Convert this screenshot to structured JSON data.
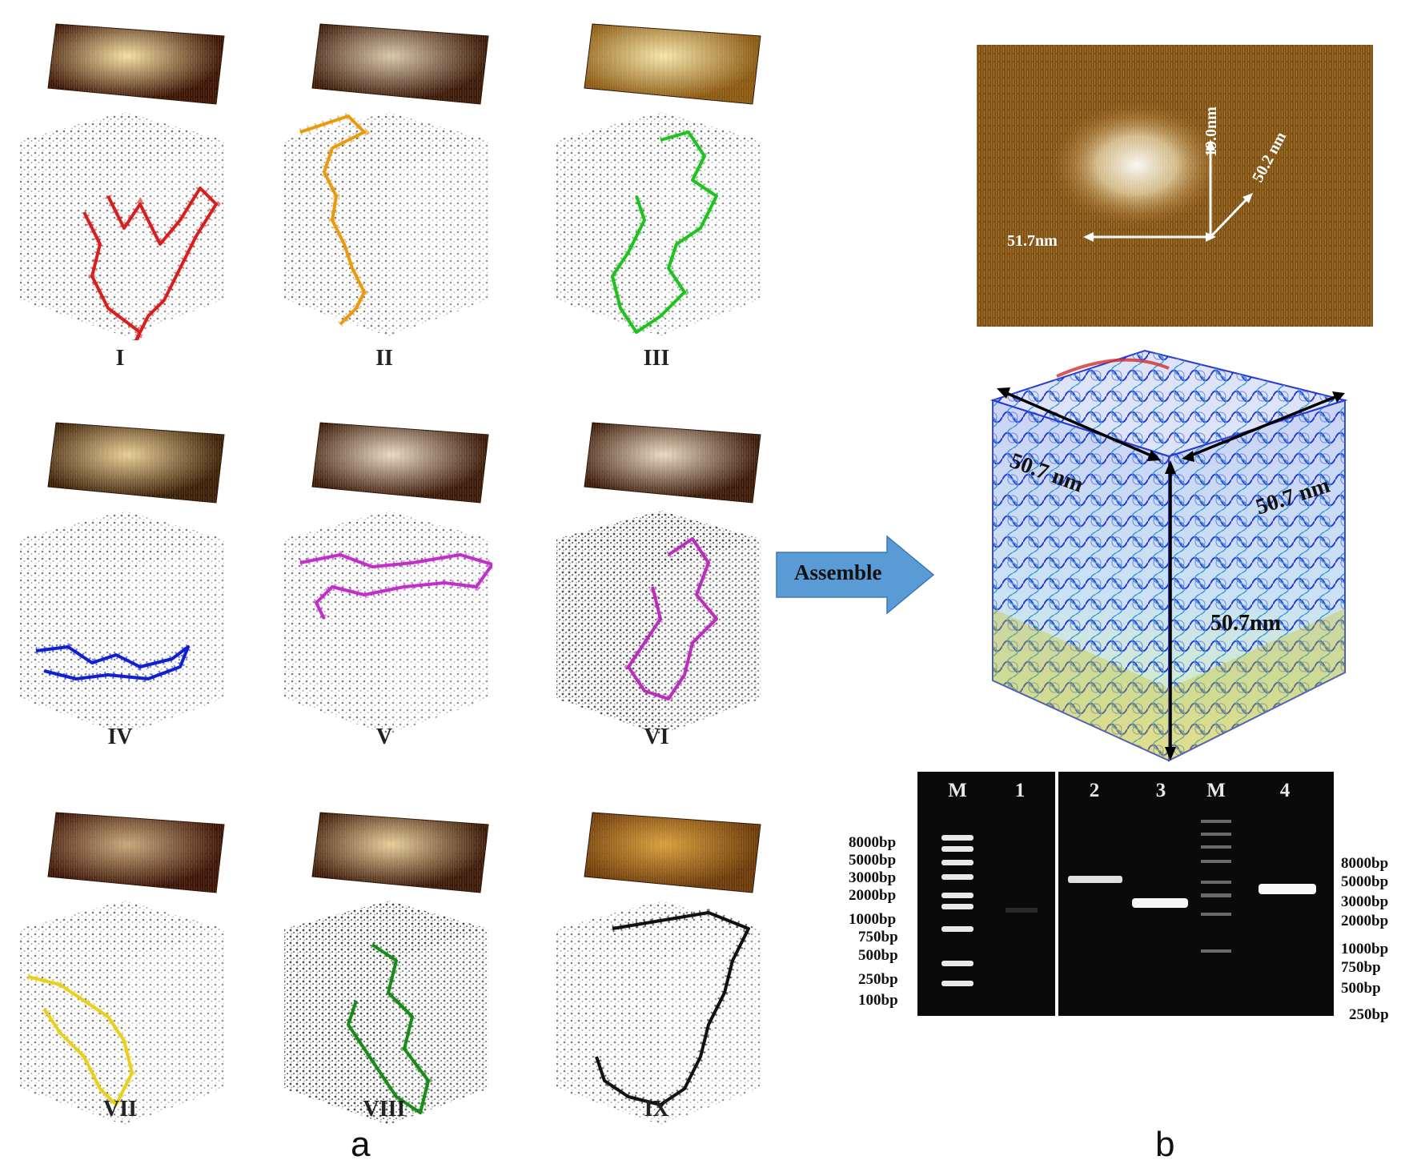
{
  "panel_a": {
    "letter": "a",
    "structures": [
      {
        "label": "I",
        "strand_color": "#d42020",
        "afm_colors": [
          "#3a1408",
          "#f5e2a8"
        ]
      },
      {
        "label": "II",
        "strand_color": "#e89a10",
        "afm_colors": [
          "#3a1a0c",
          "#d8c9b0"
        ]
      },
      {
        "label": "III",
        "strand_color": "#22c022",
        "afm_colors": [
          "#8a5a14",
          "#f5e8b0"
        ]
      },
      {
        "label": "IV",
        "strand_color": "#1020d0",
        "afm_colors": [
          "#3a200a",
          "#e8d09a"
        ]
      },
      {
        "label": "V",
        "strand_color": "#c030c8",
        "afm_colors": [
          "#3a1a0c",
          "#e8dcc8"
        ]
      },
      {
        "label": "VI",
        "strand_color": "#b830b8",
        "afm_colors": [
          "#3a1a0c",
          "#e8dcc8"
        ]
      },
      {
        "label": "VII",
        "strand_color": "#e8d020",
        "afm_colors": [
          "#3a140a",
          "#c8a880"
        ]
      },
      {
        "label": "VIII",
        "strand_color": "#1a8a1a",
        "afm_colors": [
          "#3a1a0c",
          "#e8d0a0"
        ]
      },
      {
        "label": "IX",
        "strand_color": "#111111",
        "afm_colors": [
          "#6a3a0c",
          "#d8a040"
        ]
      }
    ]
  },
  "assemble": {
    "label": "Assemble",
    "color": "#5b9bd5"
  },
  "panel_b": {
    "letter": "b",
    "afm_dims": {
      "height": "19.0nm",
      "depth": "50.2 nm",
      "width": "51.7nm"
    },
    "model_dims": {
      "left": "50.7 nm",
      "right": "50.7 nm",
      "vertical": "50.7nm"
    },
    "gel_left": {
      "lanes": [
        "M",
        "1"
      ],
      "ladder_labels": [
        "8000bp",
        "5000bp",
        "3000bp",
        "2000bp",
        "1000bp",
        "750bp",
        "500bp",
        "250bp",
        "100bp"
      ]
    },
    "gel_right": {
      "lanes": [
        "2",
        "3",
        "M",
        "4"
      ],
      "ladder_labels": [
        "8000bp",
        "5000bp",
        "3000bp",
        "2000bp",
        "1000bp",
        "750bp",
        "500bp",
        "250bp"
      ]
    }
  }
}
